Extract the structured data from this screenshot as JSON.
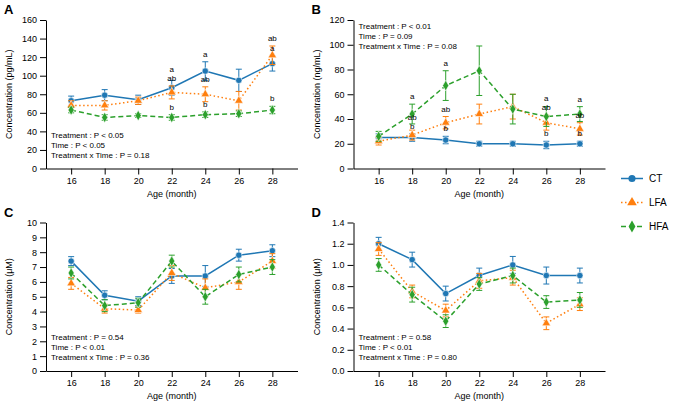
{
  "chart_data": [
    {
      "type": "line",
      "title": "A",
      "x_label": "Age (month)",
      "y_label": "Concentration (pg/mL)",
      "x": [
        16,
        18,
        20,
        22,
        24,
        26,
        28
      ],
      "xlim": [
        14.5,
        29.5
      ],
      "xticks": [
        16,
        18,
        20,
        22,
        24,
        26,
        28
      ],
      "ylim": [
        0,
        160
      ],
      "yticks": [
        0,
        20,
        40,
        60,
        80,
        100,
        120,
        140,
        160
      ],
      "grid": false,
      "legend": "right",
      "series": [
        {
          "name": "CT",
          "marker": "circle",
          "line_style": "solid",
          "values": [
            73,
            79,
            74,
            87,
            105,
            95,
            113
          ],
          "errors": [
            5,
            6,
            5,
            8,
            10,
            12,
            8
          ]
        },
        {
          "name": "LFA",
          "marker": "triangle",
          "line_style": "dotted",
          "values": [
            68,
            68,
            73,
            82,
            80,
            73,
            122
          ],
          "errors": [
            5,
            5,
            4,
            7,
            8,
            10,
            10
          ]
        },
        {
          "name": "HFA",
          "marker": "diamond",
          "line_style": "dashed",
          "values": [
            63,
            55,
            57,
            55,
            58,
            59,
            63
          ],
          "errors": [
            3,
            3,
            2,
            3,
            3,
            3,
            4
          ]
        }
      ],
      "annotations": [
        {
          "text": "Treatment : P < 0.05"
        },
        {
          "text": "Time : P < 0.05"
        },
        {
          "text": "Treatment x Time : P = 0.18"
        },
        {
          "text": "a",
          "x": 22,
          "series": "CT"
        },
        {
          "text": "ab",
          "x": 22,
          "series": "LFA"
        },
        {
          "text": "b",
          "x": 22,
          "series": "HFA"
        },
        {
          "text": "a",
          "x": 24,
          "series": "CT"
        },
        {
          "text": "ab",
          "x": 24,
          "series": "LFA"
        },
        {
          "text": "b",
          "x": 24,
          "series": "HFA"
        },
        {
          "text": "a",
          "x": 28,
          "series": "CT"
        },
        {
          "text": "ab",
          "x": 28,
          "series": "LFA"
        },
        {
          "text": "b",
          "x": 28,
          "series": "HFA"
        }
      ]
    },
    {
      "type": "line",
      "title": "B",
      "x_label": "Age (month)",
      "y_label": "Concentration (ng/mL)",
      "x": [
        16,
        18,
        20,
        22,
        24,
        26,
        28
      ],
      "xlim": [
        14.5,
        29.5
      ],
      "xticks": [
        16,
        18,
        20,
        22,
        24,
        26,
        28
      ],
      "ylim": [
        0,
        120
      ],
      "yticks": [
        0,
        20,
        40,
        60,
        80,
        100,
        120
      ],
      "grid": false,
      "series": [
        {
          "name": "CT",
          "marker": "circle",
          "line_style": "solid",
          "values": [
            25,
            25,
            23,
            20,
            20,
            19,
            20
          ],
          "errors": [
            3,
            3,
            3,
            2,
            2,
            3,
            2
          ]
        },
        {
          "name": "LFA",
          "marker": "triangle",
          "line_style": "dotted",
          "values": [
            22,
            27,
            37,
            44,
            50,
            37,
            32
          ],
          "errors": [
            3,
            4,
            5,
            8,
            10,
            6,
            5
          ]
        },
        {
          "name": "HFA",
          "marker": "diamond",
          "line_style": "dashed",
          "values": [
            26,
            44,
            67,
            79,
            48,
            42,
            44
          ],
          "errors": [
            4,
            8,
            12,
            20,
            12,
            8,
            6
          ]
        }
      ],
      "annotations": [
        {
          "text": "Treatment : P < 0.01"
        },
        {
          "text": "Time : P = 0.09"
        },
        {
          "text": "Treatment x Time : P = 0.08"
        },
        {
          "text": "b",
          "x": 18,
          "series": "CT"
        },
        {
          "text": "ab",
          "x": 18,
          "series": "LFA"
        },
        {
          "text": "a",
          "x": 18,
          "series": "HFA"
        },
        {
          "text": "b",
          "x": 20,
          "series": "CT"
        },
        {
          "text": "ab",
          "x": 20,
          "series": "LFA"
        },
        {
          "text": "a",
          "x": 20,
          "series": "HFA"
        },
        {
          "text": "b",
          "x": 26,
          "series": "CT"
        },
        {
          "text": "ab",
          "x": 26,
          "series": "LFA"
        },
        {
          "text": "a",
          "x": 26,
          "series": "HFA"
        },
        {
          "text": "b",
          "x": 28,
          "series": "CT"
        },
        {
          "text": "ab",
          "x": 28,
          "series": "LFA"
        },
        {
          "text": "a",
          "x": 28,
          "series": "HFA"
        }
      ]
    },
    {
      "type": "line",
      "title": "C",
      "x_label": "Age (month)",
      "y_label": "Concentration (μM)",
      "x": [
        16,
        18,
        20,
        22,
        24,
        26,
        28
      ],
      "xlim": [
        14.5,
        29.5
      ],
      "xticks": [
        16,
        18,
        20,
        22,
        24,
        26,
        28
      ],
      "ylim": [
        0,
        10
      ],
      "yticks": [
        0,
        1,
        2,
        3,
        4,
        5,
        6,
        7,
        8,
        9,
        10
      ],
      "grid": false,
      "series": [
        {
          "name": "CT",
          "marker": "circle",
          "line_style": "solid",
          "values": [
            7.4,
            5.1,
            4.7,
            6.4,
            6.4,
            7.8,
            8.1
          ],
          "errors": [
            0.3,
            0.3,
            0.3,
            0.5,
            0.7,
            0.4,
            0.4
          ]
        },
        {
          "name": "LFA",
          "marker": "triangle",
          "line_style": "dotted",
          "values": [
            5.9,
            4.2,
            4.1,
            6.6,
            5.6,
            6.0,
            7.4
          ],
          "errors": [
            0.4,
            0.3,
            0.2,
            0.5,
            0.6,
            0.5,
            0.5
          ]
        },
        {
          "name": "HFA",
          "marker": "diamond",
          "line_style": "dashed",
          "values": [
            6.6,
            4.4,
            4.6,
            7.4,
            5.0,
            6.5,
            7.0
          ],
          "errors": [
            0.4,
            0.4,
            0.3,
            0.4,
            0.5,
            0.5,
            0.5
          ]
        }
      ],
      "annotations": [
        {
          "text": "Treatment : P = 0.54"
        },
        {
          "text": "Time : P < 0.01"
        },
        {
          "text": "Treatment x Time : P = 0.36"
        }
      ]
    },
    {
      "type": "line",
      "title": "D",
      "x_label": "Age (month)",
      "y_label": "Concentration (μM)",
      "x": [
        16,
        18,
        20,
        22,
        24,
        26,
        28
      ],
      "xlim": [
        14.5,
        29.5
      ],
      "xticks": [
        16,
        18,
        20,
        22,
        24,
        26,
        28
      ],
      "ylim": [
        0,
        1.4
      ],
      "yticks": [
        {
          "value": 0,
          "label": "0.0"
        },
        0.2,
        0.4,
        0.6,
        0.8,
        {
          "value": 1,
          "label": "1.0"
        },
        1.2,
        1.4
      ],
      "grid": false,
      "series": [
        {
          "name": "CT",
          "marker": "circle",
          "line_style": "solid",
          "values": [
            1.2,
            1.05,
            0.73,
            0.9,
            1.0,
            0.9,
            0.9
          ],
          "errors": [
            0.06,
            0.07,
            0.07,
            0.07,
            0.08,
            0.08,
            0.07
          ]
        },
        {
          "name": "LFA",
          "marker": "triangle",
          "line_style": "dotted",
          "values": [
            1.15,
            0.75,
            0.57,
            0.85,
            0.88,
            0.45,
            0.63
          ],
          "errors": [
            0.06,
            0.06,
            0.06,
            0.07,
            0.07,
            0.06,
            0.06
          ]
        },
        {
          "name": "HFA",
          "marker": "diamond",
          "line_style": "dashed",
          "values": [
            1.0,
            0.72,
            0.47,
            0.82,
            0.9,
            0.65,
            0.67
          ],
          "errors": [
            0.06,
            0.07,
            0.06,
            0.06,
            0.07,
            0.06,
            0.07
          ]
        }
      ],
      "annotations": [
        {
          "text": "Treatment : P = 0.58"
        },
        {
          "text": "Time : P < 0.01"
        },
        {
          "text": "Treatment x Time : P = 0.80"
        }
      ]
    }
  ]
}
